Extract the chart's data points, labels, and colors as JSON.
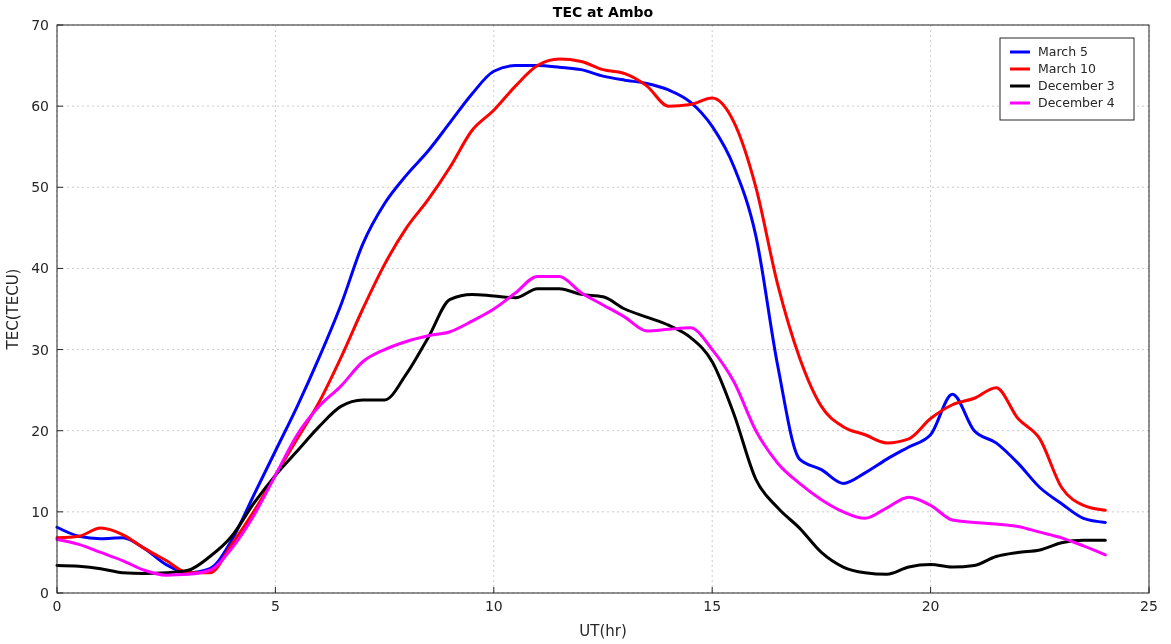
{
  "chart_data": {
    "type": "line",
    "title": "TEC at Ambo",
    "xlabel": "UT(hr)",
    "ylabel": "TEC(TECU)",
    "x": [
      0,
      0.5,
      1,
      1.5,
      2,
      2.5,
      3,
      3.5,
      4,
      4.5,
      5,
      5.5,
      6,
      6.5,
      7,
      7.5,
      8,
      8.5,
      9,
      9.5,
      10,
      10.5,
      11,
      11.5,
      12,
      12.5,
      13,
      13.5,
      14,
      14.5,
      15,
      15.5,
      16,
      16.5,
      17,
      17.5,
      18,
      18.5,
      19,
      19.5,
      20,
      20.5,
      21,
      21.5,
      22,
      22.5,
      23,
      23.5,
      24
    ],
    "xlim": [
      0,
      25
    ],
    "xticks": [
      0,
      5,
      10,
      15,
      20,
      25
    ],
    "ylim": [
      0,
      70
    ],
    "yticks": [
      0,
      10,
      20,
      30,
      40,
      50,
      60,
      70
    ],
    "grid": true,
    "legend": "top right",
    "line_style": "solid",
    "series": [
      {
        "name": "March 5",
        "color": "#0000ff",
        "values": [
          8.1,
          7,
          6.7,
          6.8,
          5.5,
          3.5,
          2.5,
          3,
          6.5,
          12,
          17.5,
          23,
          29,
          35.5,
          43,
          48,
          51.5,
          54.5,
          58,
          61.5,
          64.3,
          65,
          65,
          64.8,
          64.5,
          63.7,
          63.2,
          62.8,
          62,
          60.5,
          57.5,
          52.5,
          44,
          28,
          16.5,
          15.2,
          13.5,
          14.8,
          16.5,
          18,
          19.5,
          24.5,
          20,
          18.5,
          16,
          13,
          11,
          9.2,
          8.7
        ]
      },
      {
        "name": "March 10",
        "color": "#ff0000",
        "values": [
          6.8,
          7,
          8,
          7.2,
          5.5,
          4,
          2.5,
          2.5,
          6,
          10,
          14.5,
          19,
          23.5,
          29,
          35,
          40.5,
          45,
          48.5,
          52.5,
          57,
          59.5,
          62.5,
          65,
          65.8,
          65.5,
          64.5,
          64,
          62.5,
          60,
          60.2,
          61,
          58,
          50,
          38,
          29,
          23,
          20.5,
          19.5,
          18.5,
          19,
          21.5,
          23.2,
          24,
          25.3,
          21.5,
          19,
          13,
          10.8,
          10.2
        ]
      },
      {
        "name": "December 3",
        "color": "#000000",
        "values": [
          3.4,
          3.3,
          3,
          2.5,
          2.4,
          2.5,
          2.8,
          4.5,
          7,
          11,
          14.5,
          17.5,
          20.5,
          23,
          23.8,
          23.8,
          27,
          31.5,
          36.2,
          36.8,
          36.6,
          36.4,
          37.5,
          37.5,
          36.8,
          36.5,
          35,
          34,
          33,
          31.5,
          28.5,
          22,
          14,
          10.5,
          8,
          5,
          3.2,
          2.5,
          2.3,
          3.2,
          3.5,
          3.2,
          3.4,
          4.5,
          5,
          5.3,
          6.2,
          6.5,
          6.5
        ]
      },
      {
        "name": "December 4",
        "color": "#ff00ff",
        "values": [
          6.6,
          6,
          5,
          4,
          2.8,
          2.2,
          2.3,
          2.8,
          5.5,
          9.5,
          14.5,
          19.5,
          23,
          25.5,
          28.5,
          30,
          31,
          31.7,
          32.2,
          33.5,
          35,
          37,
          39,
          39,
          37,
          35.5,
          34,
          32.3,
          32.5,
          32.7,
          30,
          26,
          20,
          16,
          13.5,
          11.5,
          10,
          9.2,
          10.5,
          11.8,
          10.8,
          9,
          8.7,
          8.5,
          8.2,
          7.5,
          6.8,
          5.8,
          4.7
        ]
      }
    ]
  }
}
